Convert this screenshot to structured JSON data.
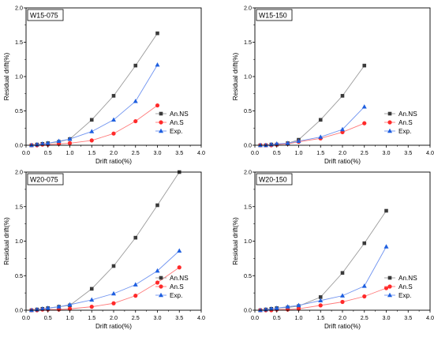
{
  "chart_data": [
    {
      "type": "line",
      "title": "W15-075",
      "xlabel": "Drift ratio(%)",
      "ylabel": "Residual drift(%)",
      "xlim": [
        0,
        4.0
      ],
      "ylim": [
        0,
        2.0
      ],
      "xticks": [
        "0.0",
        "0.5",
        "1.0",
        "1.5",
        "2.0",
        "2.5",
        "3.0",
        "3.5",
        "4.0"
      ],
      "yticks": [
        "0.0",
        "0.5",
        "1.0",
        "1.5",
        "2.0"
      ],
      "legend_position": "right",
      "series": [
        {
          "name": "An.NS",
          "marker": "square",
          "color": "#3a3a3a",
          "x": [
            0.125,
            0.25,
            0.375,
            0.5,
            0.75,
            1.0,
            1.5,
            2.0,
            2.5,
            3.0
          ],
          "y": [
            0.0,
            0.01,
            0.02,
            0.03,
            0.05,
            0.09,
            0.37,
            0.72,
            1.16,
            1.63
          ]
        },
        {
          "name": "An.S",
          "marker": "circle",
          "color": "#ff2a2a",
          "x": [
            0.125,
            0.25,
            0.375,
            0.5,
            0.75,
            1.0,
            1.5,
            2.0,
            2.5,
            3.0
          ],
          "y": [
            0.0,
            0.0,
            0.01,
            0.01,
            0.02,
            0.03,
            0.07,
            0.17,
            0.35,
            0.58
          ]
        },
        {
          "name": "Exp.",
          "marker": "triangle",
          "color": "#1e5fe0",
          "x": [
            0.125,
            0.25,
            0.375,
            0.5,
            0.75,
            1.0,
            1.5,
            2.0,
            2.5,
            3.0
          ],
          "y": [
            0.0,
            0.01,
            0.02,
            0.03,
            0.06,
            0.09,
            0.2,
            0.37,
            0.64,
            1.17
          ]
        }
      ]
    },
    {
      "type": "line",
      "title": "W15-150",
      "xlabel": "Drift ratio(%)",
      "ylabel": "Residual drift(%)",
      "xlim": [
        0,
        4.0
      ],
      "ylim": [
        0,
        2.0
      ],
      "xticks": [
        "0.0",
        "0.5",
        "1.0",
        "1.5",
        "2.0",
        "2.5",
        "3.0",
        "3.5",
        "4.0"
      ],
      "yticks": [
        "0.0",
        "0.5",
        "1.0",
        "1.5",
        "2.0"
      ],
      "legend_position": "right",
      "series": [
        {
          "name": "An.NS",
          "marker": "square",
          "color": "#3a3a3a",
          "x": [
            0.125,
            0.25,
            0.375,
            0.5,
            0.75,
            1.0,
            1.5,
            2.0,
            2.5
          ],
          "y": [
            0.0,
            0.0,
            0.01,
            0.01,
            0.03,
            0.08,
            0.37,
            0.72,
            1.16
          ]
        },
        {
          "name": "An.S",
          "marker": "circle",
          "color": "#ff2a2a",
          "x": [
            0.125,
            0.25,
            0.375,
            0.5,
            0.75,
            1.0,
            1.5,
            2.0,
            2.5
          ],
          "y": [
            0.0,
            0.0,
            0.0,
            0.01,
            0.02,
            0.05,
            0.1,
            0.19,
            0.32
          ]
        },
        {
          "name": "Exp.",
          "marker": "triangle",
          "color": "#1e5fe0",
          "x": [
            0.125,
            0.25,
            0.375,
            0.5,
            0.75,
            1.0,
            1.5,
            2.0,
            2.5
          ],
          "y": [
            0.0,
            0.0,
            0.01,
            0.02,
            0.03,
            0.06,
            0.12,
            0.23,
            0.56
          ]
        }
      ]
    },
    {
      "type": "line",
      "title": "W20-075",
      "xlabel": "Drift ratio(%)",
      "ylabel": "Residual drift(%)",
      "xlim": [
        0,
        4.0
      ],
      "ylim": [
        0,
        2.0
      ],
      "xticks": [
        "0.0",
        "0.5",
        "1.0",
        "1.5",
        "2.0",
        "2.5",
        "3.0",
        "3.5",
        "4.0"
      ],
      "yticks": [
        "0.0",
        "0.5",
        "1.0",
        "1.5",
        "2.0"
      ],
      "legend_position": "right",
      "series": [
        {
          "name": "An.NS",
          "marker": "square",
          "color": "#3a3a3a",
          "x": [
            0.125,
            0.25,
            0.375,
            0.5,
            0.75,
            1.0,
            1.5,
            2.0,
            2.5,
            3.0,
            3.5
          ],
          "y": [
            0.0,
            0.01,
            0.02,
            0.03,
            0.05,
            0.07,
            0.31,
            0.64,
            1.05,
            1.52,
            2.0
          ]
        },
        {
          "name": "An.S",
          "marker": "circle",
          "color": "#ff2a2a",
          "x": [
            0.125,
            0.25,
            0.375,
            0.5,
            0.75,
            1.0,
            1.5,
            2.0,
            2.5,
            3.0,
            3.5
          ],
          "y": [
            0.0,
            0.0,
            0.01,
            0.01,
            0.01,
            0.02,
            0.05,
            0.1,
            0.21,
            0.4,
            0.62
          ]
        },
        {
          "name": "Exp.",
          "marker": "triangle",
          "color": "#1e5fe0",
          "x": [
            0.125,
            0.25,
            0.375,
            0.5,
            0.75,
            1.0,
            1.5,
            2.0,
            2.5,
            3.0,
            3.5
          ],
          "y": [
            0.0,
            0.01,
            0.02,
            0.03,
            0.05,
            0.08,
            0.15,
            0.24,
            0.37,
            0.57,
            0.86
          ]
        }
      ]
    },
    {
      "type": "line",
      "title": "W20-150",
      "xlabel": "Drift ratio(%)",
      "ylabel": "Residual drift(%)",
      "xlim": [
        0,
        4.0
      ],
      "ylim": [
        0,
        2.0
      ],
      "xticks": [
        "0.0",
        "0.5",
        "1.0",
        "1.5",
        "2.0",
        "2.5",
        "3.0",
        "3.5",
        "4.0"
      ],
      "yticks": [
        "0.0",
        "0.5",
        "1.0",
        "1.5",
        "2.0"
      ],
      "legend_position": "bottom-right",
      "series": [
        {
          "name": "An.NS",
          "marker": "square",
          "color": "#3a3a3a",
          "x": [
            0.125,
            0.25,
            0.375,
            0.5,
            0.75,
            1.0,
            1.5,
            2.0,
            2.5,
            3.0
          ],
          "y": [
            0.0,
            0.01,
            0.02,
            0.03,
            0.04,
            0.06,
            0.19,
            0.54,
            0.97,
            1.44
          ]
        },
        {
          "name": "An.S",
          "marker": "circle",
          "color": "#ff2a2a",
          "x": [
            0.125,
            0.25,
            0.375,
            0.5,
            0.75,
            1.0,
            1.5,
            2.0,
            2.5,
            3.0
          ],
          "y": [
            0.0,
            0.0,
            0.0,
            0.01,
            0.01,
            0.02,
            0.07,
            0.12,
            0.2,
            0.32
          ]
        },
        {
          "name": "Exp.",
          "marker": "triangle",
          "color": "#1e5fe0",
          "x": [
            0.125,
            0.25,
            0.375,
            0.5,
            0.75,
            1.0,
            1.5,
            2.0,
            2.5,
            3.0
          ],
          "y": [
            0.0,
            0.01,
            0.02,
            0.03,
            0.05,
            0.07,
            0.14,
            0.21,
            0.35,
            0.92
          ]
        }
      ]
    }
  ]
}
